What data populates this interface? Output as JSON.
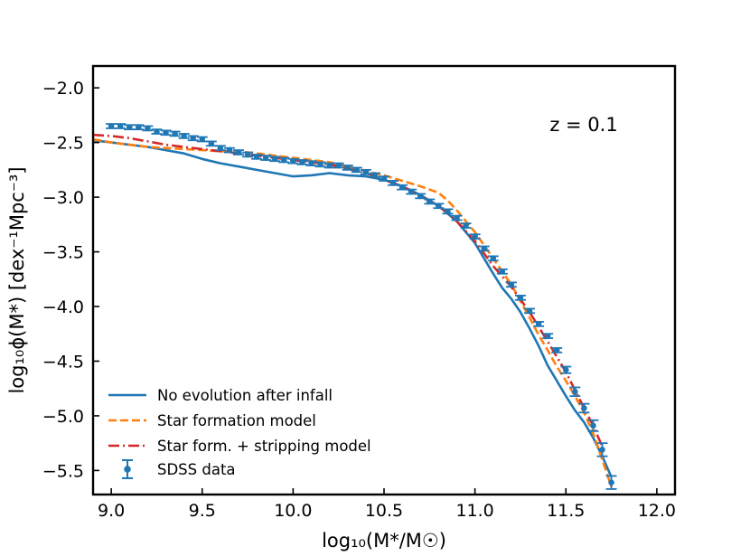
{
  "chart_data": {
    "type": "line",
    "xlabel": "log₁₀(M*/M☉)",
    "ylabel": "log₁₀ϕ(M*) [dex⁻¹Mpc⁻³]",
    "xlim": [
      8.9,
      12.1
    ],
    "ylim": [
      -5.72,
      -1.8
    ],
    "xticks": [
      "9.0",
      "9.5",
      "10.0",
      "10.5",
      "11.0",
      "11.5",
      "12.0"
    ],
    "yticks": [
      "−2.0",
      "−2.5",
      "−3.0",
      "−3.5",
      "−4.0",
      "−4.5",
      "−5.0",
      "−5.5"
    ],
    "xtick_values": [
      9.0,
      9.5,
      10.0,
      10.5,
      11.0,
      11.5,
      12.0
    ],
    "ytick_values": [
      -2.0,
      -2.5,
      -3.0,
      -3.5,
      -4.0,
      -4.5,
      -5.0,
      -5.5
    ],
    "annotation": "z = 0.1",
    "legend_position": "lower-left",
    "grid": false,
    "series": [
      {
        "name": "No evolution after infall",
        "style": "solid",
        "color": "#1f77b4",
        "x": [
          8.9,
          9.0,
          9.1,
          9.2,
          9.3,
          9.4,
          9.5,
          9.6,
          9.7,
          9.8,
          9.9,
          10.0,
          10.1,
          10.2,
          10.3,
          10.4,
          10.5,
          10.6,
          10.7,
          10.8,
          10.9,
          11.0,
          11.05,
          11.1,
          11.15,
          11.2,
          11.25,
          11.3,
          11.35,
          11.4,
          11.45,
          11.5,
          11.55,
          11.6,
          11.65,
          11.7,
          11.75
        ],
        "y": [
          -2.48,
          -2.5,
          -2.52,
          -2.54,
          -2.57,
          -2.6,
          -2.65,
          -2.69,
          -2.72,
          -2.75,
          -2.78,
          -2.81,
          -2.8,
          -2.78,
          -2.8,
          -2.81,
          -2.84,
          -2.9,
          -2.98,
          -3.08,
          -3.22,
          -3.42,
          -3.56,
          -3.7,
          -3.83,
          -3.93,
          -4.05,
          -4.2,
          -4.36,
          -4.54,
          -4.68,
          -4.82,
          -4.95,
          -5.06,
          -5.2,
          -5.37,
          -5.56
        ]
      },
      {
        "name": "Star formation model",
        "style": "dashed",
        "color": "#ff7f0e",
        "x": [
          8.9,
          9.0,
          9.1,
          9.2,
          9.3,
          9.4,
          9.5,
          9.6,
          9.7,
          9.8,
          9.9,
          10.0,
          10.1,
          10.2,
          10.3,
          10.4,
          10.5,
          10.6,
          10.7,
          10.8,
          10.85,
          10.9,
          11.0,
          11.1,
          11.2,
          11.25,
          11.3,
          11.35,
          11.4,
          11.45,
          11.5,
          11.55,
          11.6,
          11.65,
          11.7,
          11.75
        ],
        "y": [
          -2.47,
          -2.5,
          -2.52,
          -2.54,
          -2.55,
          -2.56,
          -2.57,
          -2.58,
          -2.58,
          -2.6,
          -2.62,
          -2.64,
          -2.66,
          -2.68,
          -2.72,
          -2.76,
          -2.8,
          -2.85,
          -2.9,
          -2.96,
          -3.03,
          -3.12,
          -3.32,
          -3.56,
          -3.8,
          -3.95,
          -4.1,
          -4.26,
          -4.4,
          -4.55,
          -4.68,
          -4.82,
          -4.97,
          -5.16,
          -5.4,
          -5.65
        ]
      },
      {
        "name": "Star form. + stripping model",
        "style": "dashdot",
        "color": "#d62728",
        "x": [
          8.9,
          9.0,
          9.1,
          9.2,
          9.3,
          9.4,
          9.5,
          9.6,
          9.7,
          9.8,
          9.9,
          10.0,
          10.1,
          10.2,
          10.3,
          10.4,
          10.5,
          10.6,
          10.7,
          10.8,
          10.9,
          11.0,
          11.1,
          11.2,
          11.3,
          11.4,
          11.5,
          11.6,
          11.65,
          11.7
        ],
        "y": [
          -2.43,
          -2.44,
          -2.46,
          -2.49,
          -2.52,
          -2.54,
          -2.56,
          -2.58,
          -2.6,
          -2.62,
          -2.64,
          -2.66,
          -2.68,
          -2.7,
          -2.74,
          -2.78,
          -2.84,
          -2.9,
          -2.99,
          -3.08,
          -3.22,
          -3.4,
          -3.63,
          -3.82,
          -4.05,
          -4.32,
          -4.6,
          -4.93,
          -5.09,
          -5.28
        ]
      }
    ],
    "errorbar_series": {
      "name": "SDSS data",
      "color": "#1f77b4",
      "x": [
        9.0,
        9.05,
        9.1,
        9.15,
        9.2,
        9.25,
        9.3,
        9.35,
        9.4,
        9.45,
        9.5,
        9.55,
        9.6,
        9.65,
        9.7,
        9.75,
        9.8,
        9.85,
        9.9,
        9.95,
        10.0,
        10.05,
        10.1,
        10.15,
        10.2,
        10.25,
        10.3,
        10.35,
        10.4,
        10.45,
        10.5,
        10.55,
        10.6,
        10.65,
        10.7,
        10.75,
        10.8,
        10.85,
        10.9,
        10.95,
        11.0,
        11.05,
        11.1,
        11.15,
        11.2,
        11.25,
        11.3,
        11.35,
        11.4,
        11.45,
        11.5,
        11.55,
        11.6,
        11.65,
        11.7,
        11.75
      ],
      "y": [
        -2.35,
        -2.35,
        -2.36,
        -2.36,
        -2.37,
        -2.4,
        -2.41,
        -2.42,
        -2.44,
        -2.46,
        -2.47,
        -2.51,
        -2.55,
        -2.57,
        -2.59,
        -2.61,
        -2.63,
        -2.64,
        -2.65,
        -2.66,
        -2.67,
        -2.68,
        -2.69,
        -2.7,
        -2.71,
        -2.71,
        -2.73,
        -2.75,
        -2.77,
        -2.8,
        -2.83,
        -2.87,
        -2.91,
        -2.95,
        -2.99,
        -3.04,
        -3.08,
        -3.13,
        -3.19,
        -3.26,
        -3.36,
        -3.47,
        -3.56,
        -3.68,
        -3.8,
        -3.92,
        -4.04,
        -4.16,
        -4.27,
        -4.4,
        -4.58,
        -4.78,
        -4.93,
        -5.09,
        -5.31,
        -5.61
      ],
      "yerr": [
        0.02,
        0.02,
        0.02,
        0.02,
        0.02,
        0.02,
        0.02,
        0.02,
        0.02,
        0.02,
        0.02,
        0.02,
        0.02,
        0.02,
        0.02,
        0.02,
        0.02,
        0.02,
        0.02,
        0.02,
        0.02,
        0.02,
        0.02,
        0.02,
        0.02,
        0.02,
        0.02,
        0.02,
        0.02,
        0.02,
        0.02,
        0.02,
        0.02,
        0.02,
        0.02,
        0.02,
        0.02,
        0.02,
        0.02,
        0.02,
        0.02,
        0.02,
        0.02,
        0.02,
        0.02,
        0.02,
        0.02,
        0.02,
        0.02,
        0.02,
        0.03,
        0.04,
        0.04,
        0.05,
        0.06,
        0.06
      ]
    }
  }
}
